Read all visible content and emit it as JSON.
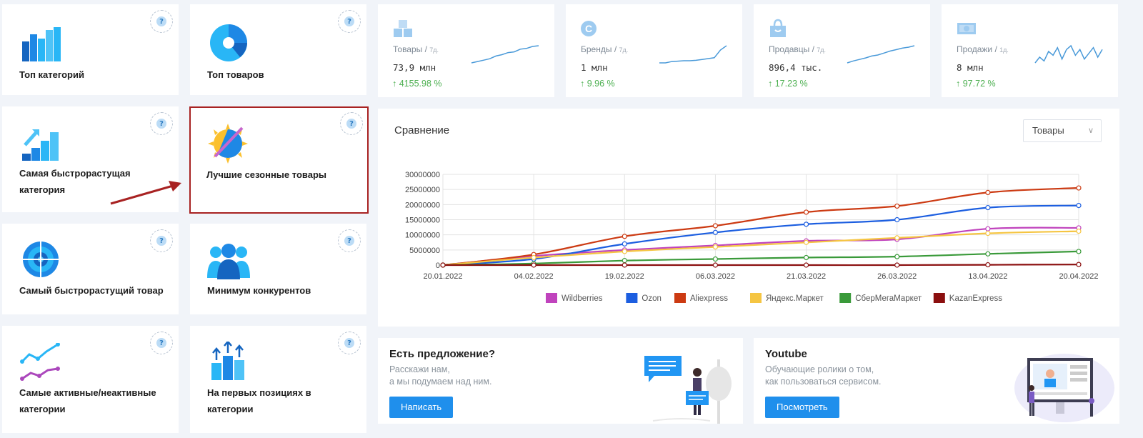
{
  "tiles": [
    {
      "label": "Топ категорий",
      "icon": "bar-chart-icon"
    },
    {
      "label": "Топ товаров",
      "icon": "pie-chart-icon"
    },
    {
      "label": "Самая быстрорастущая категория",
      "icon": "growth-stairs-icon"
    },
    {
      "label": "Лучшие сезонные товары",
      "icon": "sun-snow-icon"
    },
    {
      "label": "Самый быстрорастущий товар",
      "icon": "target-icon"
    },
    {
      "label": "Минимум конкурентов",
      "icon": "people-group-icon"
    },
    {
      "label": "Самые активные/неактивные категории",
      "icon": "trend-lines-icon"
    },
    {
      "label": "На первых позициях в категории",
      "icon": "top-positions-icon"
    }
  ],
  "help_symbol": "?",
  "stats": [
    {
      "label": "Товары",
      "period": "7д.",
      "value": "73,9 млн",
      "change": "4155.98 %",
      "icon": "boxes-icon",
      "spark": [
        2,
        4,
        6,
        8,
        12,
        14,
        17,
        18,
        22,
        23,
        26,
        27
      ]
    },
    {
      "label": "Бренды",
      "period": "7д.",
      "value": "1 млн",
      "change": "9.96 %",
      "icon": "brand-c-icon",
      "spark": [
        6,
        6,
        6.3,
        6.4,
        6.5,
        6.5,
        6.6,
        6.8,
        7,
        7.2,
        9,
        10
      ]
    },
    {
      "label": "Продавцы",
      "period": "7д.",
      "value": "896,4 тыс.",
      "change": "17.23 %",
      "icon": "shop-bag-icon",
      "spark": [
        5,
        5.4,
        5.7,
        6,
        6.4,
        6.6,
        7,
        7.4,
        7.7,
        8,
        8.2,
        8.5
      ]
    },
    {
      "label": "Продажи",
      "period": "1д.",
      "value": "8 млн",
      "change": "97.72 %",
      "icon": "money-icon",
      "spark": [
        10,
        13,
        11,
        16,
        14,
        18,
        12,
        17,
        19,
        14,
        17,
        12,
        15,
        18,
        13,
        17
      ]
    }
  ],
  "change_arrow": "↑",
  "compare": {
    "title": "Сравнение",
    "select_value": "Товары",
    "chevron": "∨"
  },
  "chart_data": {
    "type": "line",
    "x": [
      "20.01.2022",
      "04.02.2022",
      "19.02.2022",
      "06.03.2022",
      "21.03.2022",
      "26.03.2022",
      "13.04.2022",
      "20.04.2022"
    ],
    "ylim": [
      0,
      30000000
    ],
    "yticks": [
      0,
      5000000,
      10000000,
      15000000,
      20000000,
      25000000,
      30000000
    ],
    "ytick_labels": [
      "0",
      "5000000",
      "10000000",
      "15000000",
      "20000000",
      "25000000",
      "30000000"
    ],
    "grid": true,
    "legend": "bottom",
    "series": [
      {
        "name": "Wildberries",
        "color": "#c043bd",
        "values": [
          0,
          3000000,
          5000000,
          6500000,
          8000000,
          8500000,
          12000000,
          12300000
        ]
      },
      {
        "name": "Ozon",
        "color": "#1c5ee0",
        "values": [
          0,
          2000000,
          7000000,
          10800000,
          13500000,
          15000000,
          19000000,
          19700000
        ]
      },
      {
        "name": "Aliexpress",
        "color": "#cc3a12",
        "values": [
          0,
          3500000,
          9500000,
          13000000,
          17500000,
          19500000,
          24000000,
          25500000
        ]
      },
      {
        "name": "Яндекс.Маркет",
        "color": "#f5c542",
        "values": [
          0,
          2500000,
          4500000,
          6000000,
          7500000,
          9000000,
          10500000,
          11200000
        ]
      },
      {
        "name": "СберМегаМаркет",
        "color": "#3a9a3a",
        "values": [
          0,
          500000,
          1500000,
          2000000,
          2500000,
          2800000,
          3700000,
          4500000
        ]
      },
      {
        "name": "KazanExpress",
        "color": "#8b0f0f",
        "values": [
          0,
          0,
          0,
          0,
          0,
          0,
          100000,
          200000
        ]
      }
    ]
  },
  "promos": [
    {
      "title": "Есть предложение?",
      "lines": [
        "Расскажи нам,",
        "а мы подумаем над ним."
      ],
      "button": "Написать"
    },
    {
      "title": "Youtube",
      "lines": [
        "Обучающие ролики о том,",
        "как пользоваться сервисом."
      ],
      "button": "Посмотреть"
    }
  ],
  "colors": {
    "accent": "#1f8fec",
    "positive": "#4caf50",
    "highlight": "#a82222",
    "spark": "#4a9ad9"
  }
}
